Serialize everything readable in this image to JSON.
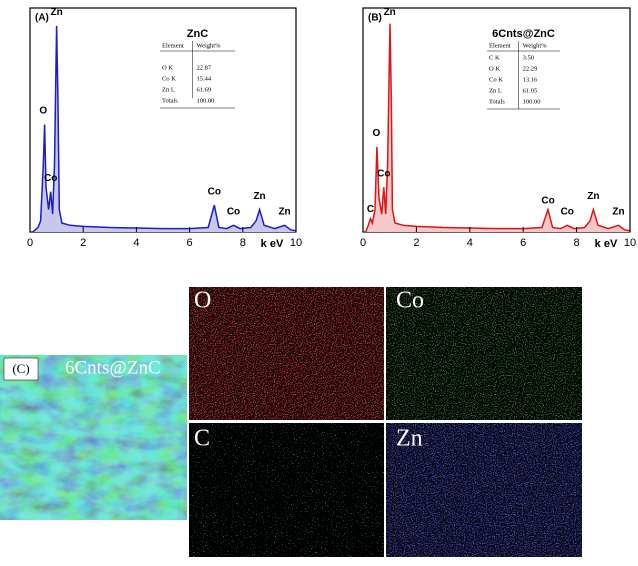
{
  "chart_data": [
    {
      "type": "line",
      "panel": "(A)",
      "title": "ZnC",
      "xlabel": "k eV",
      "color": "#1c1cc8",
      "fill": "#c8c8ec",
      "xlim": [
        0,
        10
      ],
      "xticks": [
        0,
        2,
        4,
        6,
        8,
        10
      ],
      "ylim": [
        0,
        100
      ],
      "x": [
        0.1,
        0.2,
        0.3,
        0.4,
        0.5,
        0.55,
        0.6,
        0.7,
        0.78,
        0.85,
        0.92,
        1.0,
        1.05,
        1.1,
        1.2,
        1.5,
        2,
        3,
        4,
        5,
        6,
        6.7,
        6.93,
        7.1,
        7.4,
        7.65,
        7.9,
        8.3,
        8.5,
        8.63,
        8.8,
        9.2,
        9.57,
        9.8,
        10
      ],
      "values": [
        0,
        1,
        2,
        5,
        30,
        48,
        20,
        10,
        18,
        8,
        30,
        92,
        60,
        10,
        4,
        3,
        2.5,
        2,
        1.8,
        1.5,
        1.5,
        2,
        12,
        2,
        1.5,
        3,
        1.5,
        2,
        5,
        10,
        3,
        1.5,
        3,
        1,
        0.5
      ],
      "annotations": [
        {
          "text": "Zn",
          "x": 1.0,
          "y": 98
        },
        {
          "text": "O",
          "x": 0.5,
          "y": 54
        },
        {
          "text": "Co",
          "x": 0.78,
          "y": 24
        },
        {
          "text": "Co",
          "x": 6.93,
          "y": 18
        },
        {
          "text": "Co",
          "x": 7.65,
          "y": 9
        },
        {
          "text": "Zn",
          "x": 8.63,
          "y": 16
        },
        {
          "text": "Zn",
          "x": 9.57,
          "y": 9
        }
      ],
      "table": {
        "header": [
          "Element",
          "Weight%"
        ],
        "rows": [
          [
            "O K",
            "22.87"
          ],
          [
            "Co K",
            "15.44"
          ],
          [
            "Zn L",
            "61.69"
          ],
          [
            "Totals",
            "100.00"
          ]
        ]
      }
    },
    {
      "type": "line",
      "panel": "(B)",
      "title": "6Cnts@ZnC",
      "xlabel": "k eV",
      "color": "#e01414",
      "fill": "#f4c8c8",
      "xlim": [
        0,
        10
      ],
      "xticks": [
        0,
        2,
        4,
        6,
        8,
        10
      ],
      "ylim": [
        0,
        100
      ],
      "x": [
        0.1,
        0.2,
        0.28,
        0.35,
        0.45,
        0.52,
        0.6,
        0.7,
        0.78,
        0.85,
        0.92,
        1.01,
        1.06,
        1.1,
        1.2,
        1.5,
        2,
        3,
        4,
        5,
        6,
        6.7,
        6.93,
        7.1,
        7.4,
        7.65,
        7.9,
        8.3,
        8.5,
        8.63,
        8.8,
        9.2,
        9.57,
        9.8,
        10
      ],
      "values": [
        0,
        3,
        6,
        4,
        10,
        38,
        15,
        8,
        20,
        8,
        30,
        93,
        60,
        10,
        4,
        3,
        2.5,
        2,
        1.8,
        1.5,
        1.5,
        2,
        10,
        2,
        1.5,
        3,
        1.5,
        2,
        5,
        10,
        3,
        1.5,
        3,
        1,
        0.5
      ],
      "annotations": [
        {
          "text": "Zn",
          "x": 1.0,
          "y": 98
        },
        {
          "text": "O",
          "x": 0.5,
          "y": 44
        },
        {
          "text": "Co",
          "x": 0.78,
          "y": 26
        },
        {
          "text": "C",
          "x": 0.28,
          "y": 10
        },
        {
          "text": "Co",
          "x": 6.93,
          "y": 14
        },
        {
          "text": "Co",
          "x": 7.65,
          "y": 9
        },
        {
          "text": "Zn",
          "x": 8.63,
          "y": 16
        },
        {
          "text": "Zn",
          "x": 9.57,
          "y": 9
        }
      ],
      "table": {
        "header": [
          "Element",
          "Weight%"
        ],
        "rows": [
          [
            "C K",
            "3.50"
          ],
          [
            "O K",
            "22.29"
          ],
          [
            "Co K",
            "13.16"
          ],
          [
            "Zn L",
            "61.05"
          ],
          [
            "Totals",
            "100.00"
          ]
        ]
      }
    }
  ],
  "maps": {
    "panel": "(C)",
    "composite_label": "6Cnts@ZnC",
    "elements": [
      "O",
      "Co",
      "C",
      "Zn"
    ]
  }
}
